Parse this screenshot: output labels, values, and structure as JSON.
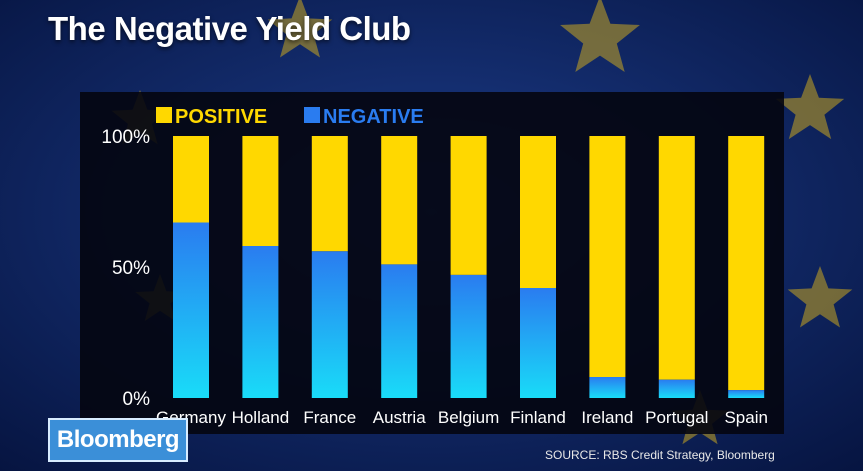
{
  "title": "The Negative Yield Club",
  "logo": "Bloomberg",
  "source": "SOURCE: RBS Credit Strategy, Bloomberg",
  "colors": {
    "positive": "#ffd800",
    "negative_top": "#2a7cf0",
    "negative_bottom": "#19dcf8",
    "panel": "#05070f",
    "text": "#ffffff"
  },
  "chart_data": {
    "type": "bar",
    "stacked": true,
    "categories": [
      "Germany",
      "Holland",
      "France",
      "Austria",
      "Belgium",
      "Finland",
      "Ireland",
      "Portugal",
      "Spain"
    ],
    "series": [
      {
        "name": "NEGATIVE",
        "values": [
          67,
          58,
          56,
          51,
          47,
          42,
          8,
          7,
          3
        ]
      },
      {
        "name": "POSITIVE",
        "values": [
          33,
          42,
          44,
          49,
          53,
          58,
          92,
          93,
          97
        ]
      }
    ],
    "yticks": [
      "0%",
      "50%",
      "100%"
    ],
    "ylim": [
      0,
      100
    ],
    "legend": "top-left",
    "grid": false
  }
}
